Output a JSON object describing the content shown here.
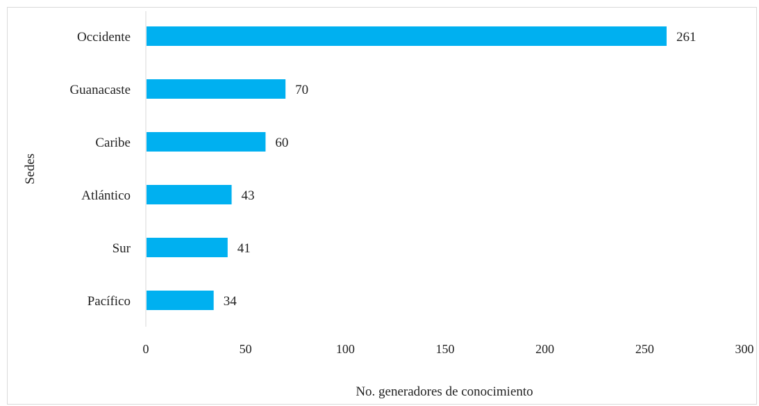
{
  "chart_data": {
    "type": "bar",
    "orientation": "horizontal",
    "title": "",
    "xlabel": "No. generadores de conocimiento",
    "ylabel": "Sedes",
    "categories": [
      "Occidente",
      "Guanacaste",
      "Caribe",
      "Atlántico",
      "Sur",
      "Pacífico"
    ],
    "values": [
      261,
      70,
      60,
      43,
      41,
      34
    ],
    "data_labels": [
      "261",
      "70",
      "60",
      "43",
      "41",
      "34"
    ],
    "xlim": [
      0,
      300
    ],
    "xticks": [
      0,
      50,
      100,
      150,
      200,
      250,
      300
    ],
    "xtick_labels": [
      "0",
      "50",
      "100",
      "150",
      "200",
      "250",
      "300"
    ],
    "grid": false,
    "legend": "none",
    "bar_color": "#00b0f0"
  }
}
